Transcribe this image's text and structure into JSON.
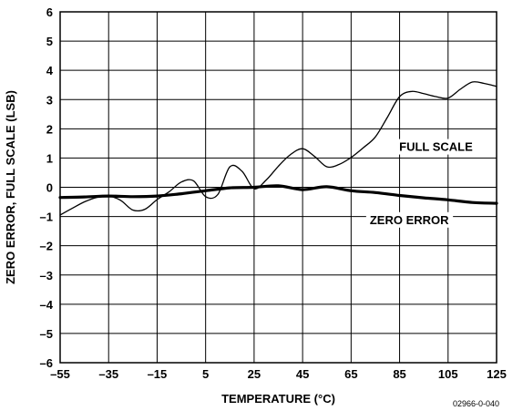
{
  "chart_data": {
    "type": "line",
    "xlabel": "TEMPERATURE (°C)",
    "ylabel": "ZERO ERROR, FULL SCALE (LSB)",
    "xlim": [
      -55,
      125
    ],
    "ylim": [
      -6,
      6
    ],
    "xticks": [
      -55,
      -35,
      -15,
      5,
      25,
      45,
      65,
      85,
      105,
      125
    ],
    "xtick_labels": [
      "–55",
      "–35",
      "–15",
      "5",
      "25",
      "45",
      "65",
      "85",
      "105",
      "125"
    ],
    "yticks": [
      -6,
      -5,
      -4,
      -3,
      -2,
      -1,
      0,
      1,
      2,
      3,
      4,
      5,
      6
    ],
    "ytick_labels": [
      "–6",
      "–5",
      "–4",
      "–3",
      "–2",
      "–1",
      "0",
      "1",
      "2",
      "3",
      "4",
      "5",
      "6"
    ],
    "grid": true,
    "figure_code": "02966-0-040",
    "series": [
      {
        "name": "FULL SCALE",
        "line_width": "thin",
        "x": [
          -55,
          -50,
          -45,
          -40,
          -35,
          -30,
          -25,
          -20,
          -15,
          -10,
          -5,
          0,
          5,
          10,
          15,
          20,
          25,
          30,
          35,
          40,
          45,
          50,
          55,
          60,
          65,
          70,
          75,
          80,
          85,
          90,
          95,
          100,
          105,
          110,
          115,
          120,
          125
        ],
        "values": [
          -0.95,
          -0.72,
          -0.5,
          -0.35,
          -0.3,
          -0.45,
          -0.78,
          -0.75,
          -0.42,
          -0.15,
          0.18,
          0.22,
          -0.32,
          -0.25,
          0.7,
          0.55,
          -0.05,
          0.25,
          0.72,
          1.12,
          1.32,
          1.05,
          0.7,
          0.78,
          1.02,
          1.35,
          1.72,
          2.4,
          3.1,
          3.28,
          3.2,
          3.1,
          3.05,
          3.35,
          3.6,
          3.55,
          3.45
        ]
      },
      {
        "name": "ZERO ERROR",
        "line_width": "thick",
        "x": [
          -55,
          -45,
          -35,
          -25,
          -15,
          -5,
          5,
          15,
          25,
          35,
          45,
          55,
          65,
          75,
          85,
          95,
          105,
          115,
          125
        ],
        "values": [
          -0.35,
          -0.33,
          -0.3,
          -0.32,
          -0.3,
          -0.22,
          -0.12,
          -0.02,
          0.0,
          0.05,
          -0.08,
          0.02,
          -0.12,
          -0.18,
          -0.28,
          -0.36,
          -0.43,
          -0.52,
          -0.55
        ]
      }
    ],
    "annotations": [
      {
        "text": "FULL SCALE",
        "x": 100,
        "y": 1.4
      },
      {
        "text": "ZERO ERROR",
        "x": 89,
        "y": -1.1
      }
    ]
  }
}
